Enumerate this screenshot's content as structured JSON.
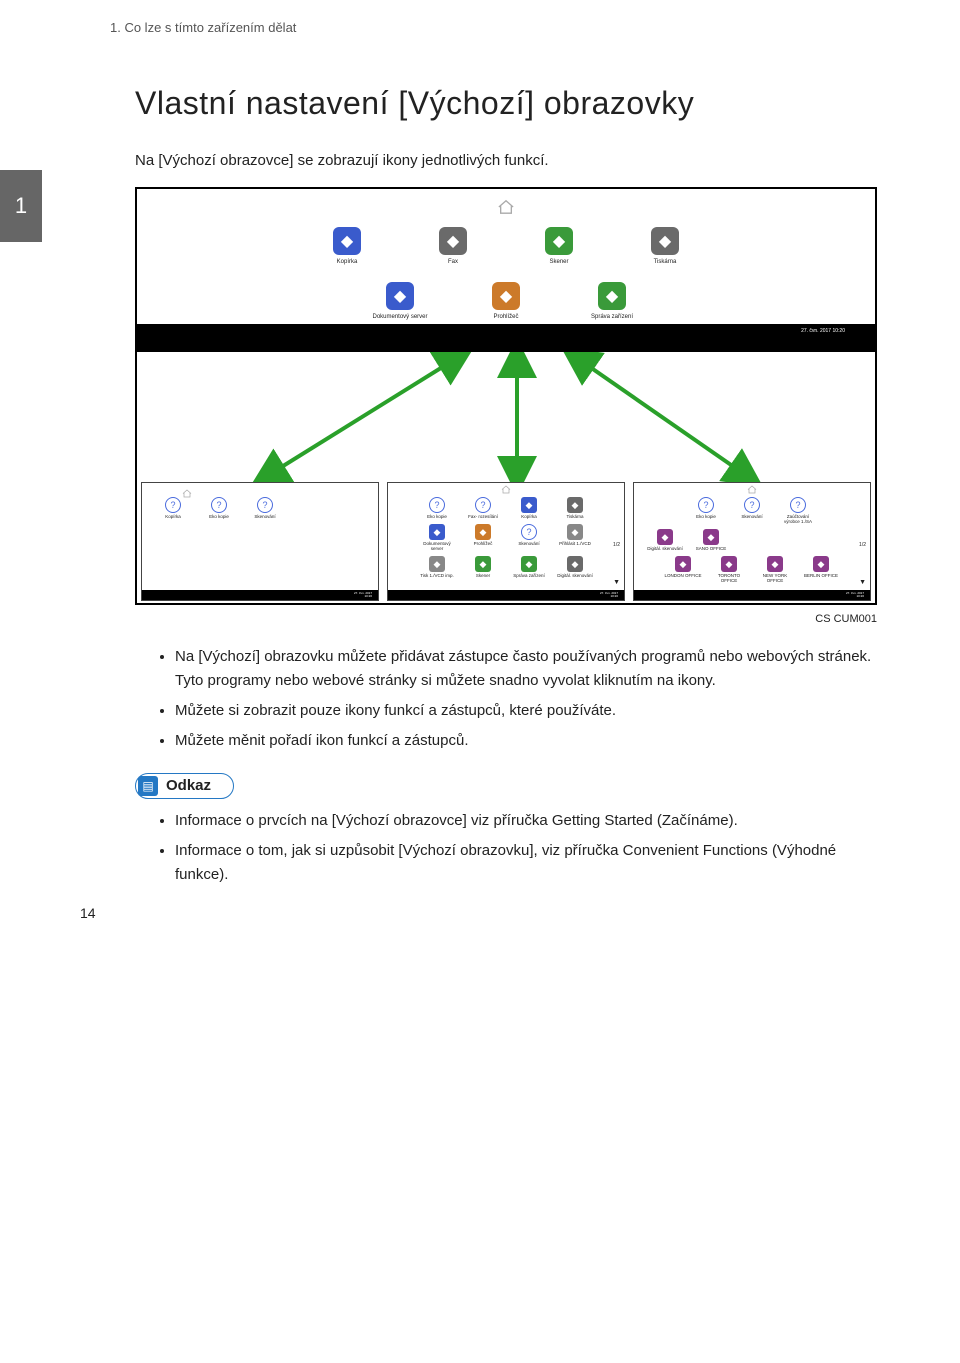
{
  "header": "1. Co lze s tímto zařízením dělat",
  "chapter_number": "1",
  "title": "Vlastní nastavení [Výchozí] obrazovky",
  "intro": "Na [Výchozí obrazovce] se zobrazují ikony jednotlivých funkcí.",
  "page_number": "14",
  "figure": {
    "caption": "CS CUM001",
    "top_panel": {
      "row1": [
        {
          "label": "Kopírka",
          "color": "#3a5bcc"
        },
        {
          "label": "Fax",
          "color": "#6a6a6a"
        },
        {
          "label": "Skener",
          "color": "#3a9a3a"
        },
        {
          "label": "Tiskárna",
          "color": "#6a6a6a"
        }
      ],
      "row2": [
        {
          "label": "Dokumentový server",
          "color": "#3a5bcc"
        },
        {
          "label": "Prohlížeč",
          "color": "#cc7a2a"
        },
        {
          "label": "Správa zařízení",
          "color": "#3a9a3a"
        }
      ],
      "timestamp": "27. čvn. 2017\n10:20"
    },
    "arrows": {
      "color": "#2aa02a"
    },
    "panel_left": {
      "items": [
        {
          "label": "Kopírka",
          "color": "#4a6bdd",
          "shape": "c"
        },
        {
          "label": "Eko kopie",
          "color": "#4a6bdd",
          "shape": "c"
        },
        {
          "label": "Skenování",
          "color": "#4a6bdd",
          "shape": "c"
        }
      ]
    },
    "panel_center": {
      "row1": [
        {
          "label": "Eko kopie",
          "color": "#4a6bdd",
          "shape": "c"
        },
        {
          "label": "Fax- rozesílání",
          "color": "#4a6bdd",
          "shape": "c"
        },
        {
          "label": "Kopírka",
          "color": "#3a5bcc",
          "shape": "sq"
        },
        {
          "label": "Tiskárna",
          "color": "#6a6a6a",
          "shape": "sq"
        }
      ],
      "row2": [
        {
          "label": "Dokumentový server",
          "color": "#3a5bcc",
          "shape": "sq"
        },
        {
          "label": "Prohlížeč",
          "color": "#cc7a2a",
          "shape": "sq"
        },
        {
          "label": "Skenování",
          "color": "#4a6bdd",
          "shape": "c"
        },
        {
          "label": "Přihlásit 1./VCD",
          "color": "#888",
          "shape": "sq"
        }
      ],
      "row3": [
        {
          "label": "Tisk 1./VCD imp.",
          "color": "#888",
          "shape": "sq"
        },
        {
          "label": "Skener",
          "color": "#3a9a3a",
          "shape": "sq"
        },
        {
          "label": "Správa zařízení",
          "color": "#3a9a3a",
          "shape": "sq"
        },
        {
          "label": "Digitál. skenování",
          "color": "#6a6a6a",
          "shape": "sq"
        }
      ],
      "page": "1/2"
    },
    "panel_right": {
      "row1": [
        {
          "label": "Eko kopie",
          "color": "#4a6bdd",
          "shape": "c"
        },
        {
          "label": "Skenování",
          "color": "#4a6bdd",
          "shape": "c"
        },
        {
          "label": "Zaúčtování výrobce 1./SA",
          "color": "#4a6bdd",
          "shape": "c"
        }
      ],
      "row2": [
        {
          "label": "Digitál. skenování",
          "color": "#8a3a8a",
          "shape": "sq"
        },
        {
          "label": "SANO OFFICE",
          "color": "#8a3a8a",
          "shape": "sq"
        }
      ],
      "row3": [
        {
          "label": "LONDON OFFICE",
          "color": "#8a3a8a",
          "shape": "sq"
        },
        {
          "label": "TORONTO OFFICE",
          "color": "#8a3a8a",
          "shape": "sq"
        },
        {
          "label": "NEW YORK OFFICE",
          "color": "#8a3a8a",
          "shape": "sq"
        },
        {
          "label": "BERLIN OFFICE",
          "color": "#8a3a8a",
          "shape": "sq"
        }
      ],
      "page": "1/2"
    }
  },
  "bullets_main": [
    "Na [Výchozí] obrazovku můžete přidávat zástupce často používaných programů nebo webových stránek. Tyto programy nebo webové stránky si můžete snadno vyvolat kliknutím na ikony.",
    "Můžete si zobrazit pouze ikony funkcí a zástupců, které používáte.",
    "Můžete měnit pořadí ikon funkcí a zástupců."
  ],
  "reference_label": "Odkaz",
  "bullets_ref": [
    "Informace o prvcích na [Výchozí obrazovce] viz příručka Getting Started (Začínáme).",
    "Informace o tom, jak si uzpůsobit [Výchozí obrazovku], viz příručka Convenient Functions (Výhodné funkce)."
  ]
}
